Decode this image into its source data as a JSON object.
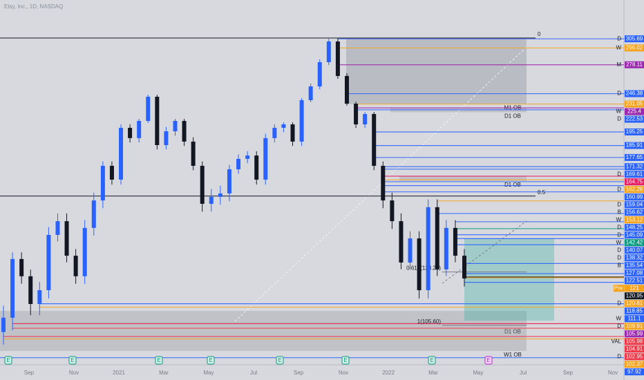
{
  "chart_data": {
    "type": "candlestick",
    "title": "Etsy, Inc., 1D, NASDAQ",
    "open": [
      104.0,
      107.4,
      129.1,
      121.3,
      111.0,
      116.0,
      140.0,
      145.3,
      130.6,
      121.3,
      142.7,
      153.3,
      171.9,
      162.4,
      198.1,
      191.0,
      206.1,
      241.8,
      186.2,
      195.7,
      206.1,
      188.6,
      171.9,
      152.0,
      154.7,
      156.0,
      169.5,
      176.7,
      179.0,
      162.4,
      191.0,
      198.1,
      201.0,
      188.6,
      236.7,
      255.1,
      280.9,
      302.9,
      266.2,
      231.6,
      201.0,
      216.3,
      171.9,
      153.3,
      145.3,
      127.5,
      138.4,
      116.0,
      150.7,
      124.4,
      142.7,
      130.6
    ],
    "high": [
      110.4,
      132.1,
      132.1,
      124.3,
      119.0,
      143.0,
      148.3,
      148.3,
      133.6,
      145.7,
      156.3,
      174.9,
      174.9,
      201.1,
      201.1,
      209.1,
      244.8,
      244.8,
      198.7,
      209.1,
      209.1,
      191.6,
      174.9,
      157.7,
      159.0,
      172.5,
      179.7,
      182.0,
      182.0,
      194.0,
      201.1,
      204.0,
      204.0,
      239.7,
      258.1,
      283.9,
      305.7,
      305.9,
      269.2,
      234.6,
      219.3,
      219.3,
      174.9,
      156.3,
      148.3,
      141.4,
      141.4,
      153.7,
      153.7,
      145.7,
      145.7,
      133.6
    ],
    "low": [
      101.0,
      104.4,
      118.3,
      108.0,
      108.0,
      113.0,
      137.0,
      127.6,
      118.3,
      118.3,
      139.7,
      150.3,
      159.4,
      159.4,
      188.0,
      188.0,
      203.1,
      183.2,
      183.2,
      192.7,
      185.6,
      168.9,
      149.0,
      149.0,
      151.7,
      153.0,
      166.5,
      173.7,
      159.4,
      159.4,
      188.0,
      195.1,
      185.6,
      185.6,
      233.7,
      252.1,
      277.9,
      263.2,
      228.6,
      198.0,
      198.0,
      168.9,
      150.3,
      142.3,
      124.5,
      124.5,
      113.0,
      113.0,
      121.4,
      121.4,
      127.6,
      117.3
    ],
    "close": [
      107.4,
      129.1,
      121.3,
      111.0,
      116.0,
      140.0,
      145.3,
      130.6,
      121.3,
      142.7,
      153.3,
      171.9,
      162.4,
      198.1,
      191.0,
      206.1,
      241.8,
      186.2,
      195.7,
      206.1,
      188.6,
      171.9,
      152.0,
      154.7,
      156.0,
      169.5,
      176.7,
      179.0,
      162.4,
      191.0,
      198.1,
      201.0,
      188.6,
      236.7,
      255.1,
      280.9,
      302.9,
      266.2,
      231.6,
      201.0,
      216.3,
      171.9,
      153.3,
      145.3,
      127.5,
      138.4,
      116.0,
      150.7,
      124.4,
      142.7,
      130.6,
      120.3
    ],
    "up_color": "#2962ff",
    "down_color": "#131722",
    "xlabels": [
      "Sep",
      "Nov",
      "2021",
      "Mar",
      "May",
      "Jul",
      "Sep",
      "Nov",
      "2022",
      "Mar",
      "May",
      "Jul",
      "Sep",
      "Nov"
    ],
    "price_labels": [
      {
        "value": 305.69,
        "color": "#2962ff",
        "tag": "D"
      },
      {
        "value": 296.02,
        "color": "#f7a21b",
        "tag": "W"
      },
      {
        "value": 278.11,
        "color": "#9c27b0",
        "tag": "M"
      },
      {
        "value": 246.38,
        "color": "#2962ff",
        "tag": "D"
      },
      {
        "value": 231.05,
        "color": "#f7a21b"
      },
      {
        "value": 225.4,
        "color": "#9c27b0",
        "tag": "W"
      },
      {
        "value": 222.53,
        "color": "#2962ff",
        "tag": "D"
      },
      {
        "value": 195.25,
        "color": "#2962ff"
      },
      {
        "value": 185.91,
        "color": "#2962ff"
      },
      {
        "value": 177.65,
        "color": "#2962ff"
      },
      {
        "value": 171.32,
        "color": "#2962ff"
      },
      {
        "value": 169.61,
        "color": "#2962ff",
        "tag": "D"
      },
      {
        "value": 164.75,
        "color": "#e91e63"
      },
      {
        "value": 162.28,
        "color": "#f7a21b",
        "tag": "D"
      },
      {
        "value": 160.99,
        "color": "#2962ff"
      },
      {
        "value": 159.04,
        "color": "#2962ff",
        "tag": "D"
      },
      {
        "value": 156.62,
        "color": "#2962ff",
        "tag": "B"
      },
      {
        "value": 153.12,
        "color": "#f7a21b",
        "tag": "W"
      },
      {
        "value": 148.25,
        "color": "#2962ff",
        "tag": "D"
      },
      {
        "value": 145.09,
        "color": "#2962ff",
        "tag": "D"
      },
      {
        "value": 142.42,
        "color": "#089981",
        "tag": "W"
      },
      {
        "value": 140.07,
        "color": "#2962ff",
        "tag": "D"
      },
      {
        "value": 138.32,
        "color": "#2962ff",
        "tag": "D"
      },
      {
        "value": 135.54,
        "color": "#2962ff",
        "tag": "B"
      },
      {
        "value": 127.08,
        "color": "#2962ff"
      },
      {
        "value": 122.51,
        "color": "#2962ff"
      },
      {
        "value": 121.0,
        "color": "#f7a21b"
      },
      {
        "value": 120.95,
        "color": "#131722"
      },
      {
        "value": 120.61,
        "color": "#f7a21b",
        "tag": "D"
      },
      {
        "value": 118.85,
        "color": "#2962ff"
      },
      {
        "value": 111.1,
        "color": "#2962ff",
        "tag": "W"
      },
      {
        "value": 109.91,
        "color": "#f7a21b",
        "tag": "D"
      },
      {
        "value": 105.99,
        "color": "#9c27b0"
      },
      {
        "value": 105.98,
        "color": "#f23645",
        "tag": "VAL"
      },
      {
        "value": 104.91,
        "color": "#f23645"
      },
      {
        "value": 102.95,
        "color": "#f23645",
        "tag": "D"
      },
      {
        "value": 102.37,
        "color": "#f7a21b"
      },
      {
        "value": 97.92,
        "color": "#2962ff"
      }
    ],
    "pre_label": "Pre",
    "zones": [
      {
        "label": "M1 OB",
        "top": 305.69,
        "bottom": 231.05
      },
      {
        "label": "D1 OB",
        "top": 225.4,
        "bottom": 219.0
      },
      {
        "label": "D1 OB",
        "top": 165.0,
        "bottom": 161.5
      },
      {
        "label": "D1 OB",
        "top": 109.0,
        "bottom": 105.0
      },
      {
        "label": "W1 OB",
        "top": 105.0,
        "bottom": 99.5
      }
    ],
    "fib": [
      {
        "label": "0",
        "value": 306.5
      },
      {
        "label": "0.5",
        "value": 155.0
      },
      {
        "label": "0.618(123.25)",
        "value": 123.25
      },
      {
        "label": "1(105.60)",
        "value": 105.6
      }
    ],
    "position_box": {
      "top": 138.5,
      "bottom": 106.7
    },
    "earnings_label": "E"
  }
}
